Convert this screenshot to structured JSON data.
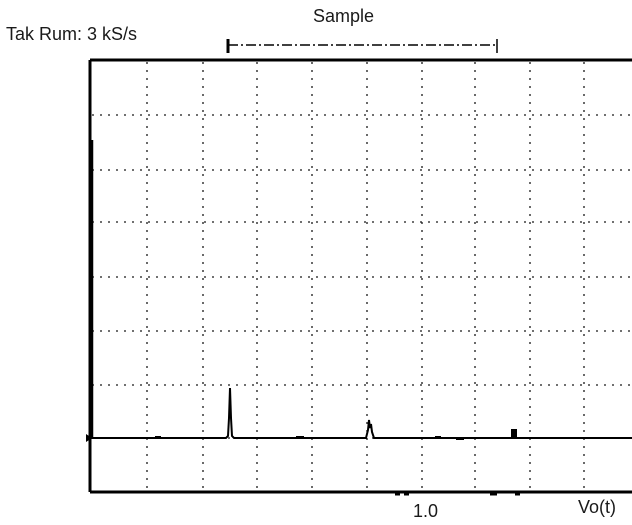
{
  "header": {
    "acquisition_rate": "Tak Rum: 3 kS/s",
    "acquire_mode": "Sample"
  },
  "footer": {
    "scale_readout": "1.0",
    "channel_label": "Vo(t)"
  },
  "display": {
    "grid": true,
    "trace_color": "#000000",
    "grid_color": "#1a1a1a"
  }
}
